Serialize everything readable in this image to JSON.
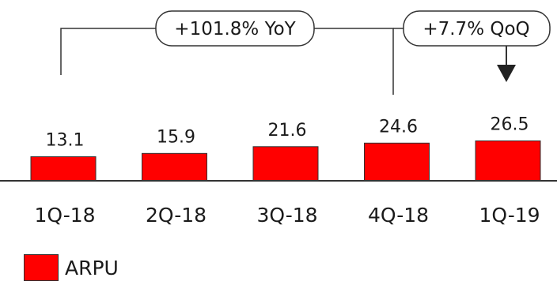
{
  "chart_data": {
    "type": "bar",
    "categories": [
      "1Q-18",
      "2Q-18",
      "3Q-18",
      "4Q-18",
      "1Q-19"
    ],
    "series": [
      {
        "name": "ARPU",
        "values": [
          13.1,
          15.9,
          21.6,
          24.6,
          26.5
        ]
      }
    ],
    "data_labels": [
      "13.1",
      "15.9",
      "21.6",
      "24.6",
      "26.5"
    ],
    "annotations": [
      {
        "text": "+101.8% YoY",
        "from": "1Q-18",
        "to": "4Q-18"
      },
      {
        "text": "+7.7% QoQ",
        "from": "4Q-18",
        "to": "1Q-19"
      }
    ],
    "bar_color": "#ff0000",
    "legend_placement": "bottom-left",
    "grid": false
  }
}
